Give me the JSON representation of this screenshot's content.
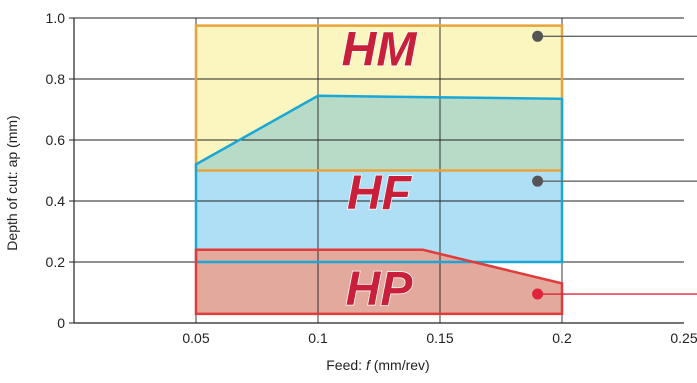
{
  "chart_data": {
    "type": "area",
    "title": "",
    "xlabel": {
      "prefix": "Feed: ",
      "variable": "f",
      "suffix": " (mm/rev)"
    },
    "ylabel": "Depth of cut: ap (mm)",
    "xlim": [
      0,
      0.25
    ],
    "ylim": [
      0,
      1.0
    ],
    "xticks": [
      "0.05",
      "0.1",
      "0.15",
      "0.2",
      "0.25"
    ],
    "xtick_values": [
      0.05,
      0.1,
      0.15,
      0.2,
      0.25
    ],
    "yticks": [
      "0",
      "0.2",
      "0.4",
      "0.6",
      "0.8",
      "1.0"
    ],
    "ytick_values": [
      0,
      0.2,
      0.4,
      0.6,
      0.8,
      1.0
    ],
    "grid": true,
    "regions": [
      {
        "name": "HM",
        "fill": "#fbf5c0",
        "stroke": "#e8a43c",
        "marker": "#555555",
        "polygon": [
          [
            0.05,
            0.975
          ],
          [
            0.2,
            0.975
          ],
          [
            0.2,
            0.5
          ],
          [
            0.05,
            0.5
          ]
        ],
        "marker_at": [
          0.19,
          0.94
        ]
      },
      {
        "name": "HF",
        "fill": "#aedff5",
        "stroke": "#1aa7d6",
        "marker": "#555555",
        "polygon": [
          [
            0.05,
            0.52
          ],
          [
            0.1,
            0.745
          ],
          [
            0.2,
            0.735
          ],
          [
            0.2,
            0.2
          ],
          [
            0.05,
            0.2
          ]
        ],
        "marker_at": [
          0.19,
          0.465
        ]
      },
      {
        "name": "HP",
        "fill": "#e2a99c",
        "stroke": "#e03c3c",
        "marker": "#e0243c",
        "polygon": [
          [
            0.05,
            0.24
          ],
          [
            0.143,
            0.24
          ],
          [
            0.2,
            0.13
          ],
          [
            0.2,
            0.03
          ],
          [
            0.05,
            0.03
          ]
        ],
        "marker_at": [
          0.19,
          0.095
        ]
      }
    ],
    "overlap_fill": "#b8dbc8",
    "leader_line_color": "#666666"
  }
}
